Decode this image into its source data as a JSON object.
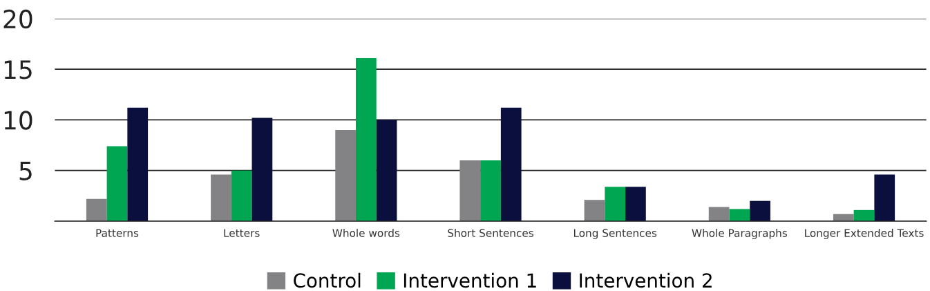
{
  "chart_data": {
    "type": "bar",
    "categories": [
      "Patterns",
      "Letters",
      "Whole words",
      "Short Sentences",
      "Long Sentences",
      "Whole Paragraphs",
      "Longer Extended Texts"
    ],
    "series": [
      {
        "name": "Control",
        "color": "#838386",
        "values": [
          2.2,
          4.6,
          9.0,
          6.0,
          2.1,
          1.4,
          0.7
        ]
      },
      {
        "name": "Intervention 1",
        "color": "#00a651",
        "values": [
          7.4,
          5.0,
          16.1,
          6.0,
          3.4,
          1.2,
          1.1
        ]
      },
      {
        "name": "Intervention 2",
        "color": "#0a0f3d",
        "values": [
          11.2,
          10.2,
          10.0,
          11.2,
          3.4,
          2.0,
          4.6
        ]
      }
    ],
    "ylim": [
      0,
      20
    ],
    "yticks": [
      {
        "value": 0,
        "label": null
      },
      5,
      10,
      15,
      20
    ],
    "grid": "y",
    "legend": "bottom"
  }
}
